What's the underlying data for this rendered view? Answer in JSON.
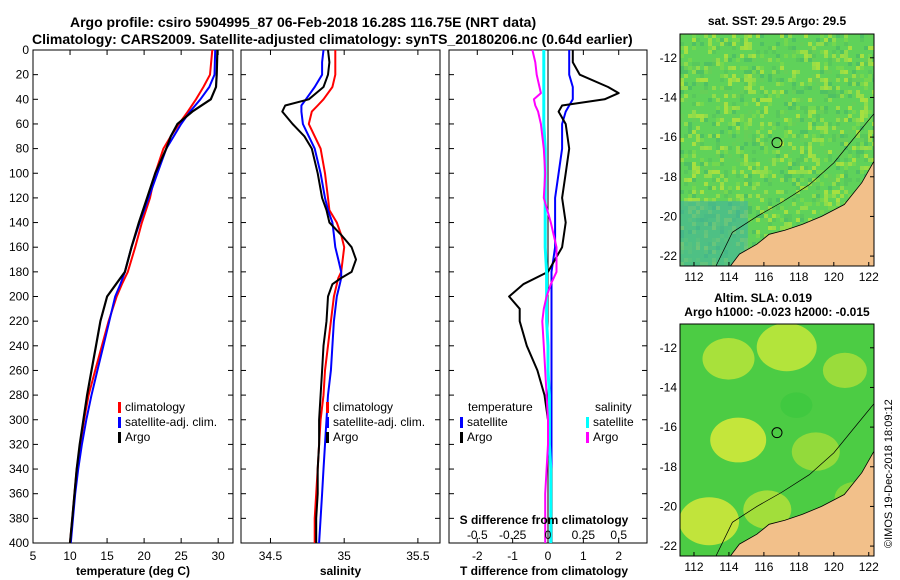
{
  "titles": {
    "line1": "Argo profile: csiro 5904995_87 06-Feb-2018 16.28S 116.75E (NRT data)",
    "line2": "Climatology: CARS2009. Satellite-adjusted climatology: synTS_20180206.nc (0.64d earlier)"
  },
  "credit": "©IMOS 19-Dec-2018 18:09:12",
  "colors": {
    "climatology": "#ff0000",
    "satellite": "#0000ff",
    "argo": "#000000",
    "satellite_salinity": "#00ffff",
    "argo_salinity": "#ff00ff",
    "land": "#f2c08a",
    "ocean": "#4dd14d"
  },
  "chart_data": [
    {
      "type": "line",
      "name": "temperature",
      "xlabel": "temperature (deg C)",
      "ylabel": "",
      "xlim": [
        5,
        32
      ],
      "ylim": [
        0,
        400
      ],
      "x_ticks": [
        "5",
        "10",
        "15",
        "20",
        "25",
        "30"
      ],
      "x_tick_values": [
        5,
        10,
        15,
        20,
        25,
        30
      ],
      "y_ticks": [
        "0",
        "20",
        "40",
        "60",
        "80",
        "100",
        "120",
        "140",
        "160",
        "180",
        "200",
        "220",
        "240",
        "260",
        "280",
        "300",
        "320",
        "340",
        "360",
        "380",
        "400"
      ],
      "y_tick_values": [
        0,
        20,
        40,
        60,
        80,
        100,
        120,
        140,
        160,
        180,
        200,
        220,
        240,
        260,
        280,
        300,
        320,
        340,
        360,
        380,
        400
      ],
      "legend": [
        "climatology",
        "satellite-adj. clim.",
        "Argo"
      ],
      "depth": [
        0,
        20,
        30,
        40,
        50,
        60,
        70,
        80,
        100,
        120,
        140,
        160,
        180,
        190,
        200,
        220,
        240,
        260,
        280,
        300,
        320,
        340,
        360,
        380,
        400
      ],
      "series": [
        {
          "name": "climatology",
          "values": [
            29.2,
            28.9,
            28.0,
            27.0,
            25.9,
            24.7,
            23.6,
            22.6,
            21.5,
            20.8,
            19.7,
            18.8,
            17.8,
            17.0,
            16.3,
            15.2,
            14.3,
            13.4,
            12.5,
            11.9,
            11.4,
            10.9,
            10.6,
            10.3,
            10.0
          ]
        },
        {
          "name": "satellite-adj. clim.",
          "values": [
            29.6,
            29.5,
            28.8,
            27.6,
            26.2,
            25.0,
            24.0,
            23.0,
            21.8,
            20.6,
            19.4,
            18.3,
            17.4,
            16.8,
            16.1,
            15.3,
            14.5,
            13.7,
            12.9,
            12.2,
            11.6,
            11.1,
            10.7,
            10.4,
            10.1
          ]
        },
        {
          "name": "Argo",
          "values": [
            29.9,
            29.8,
            29.7,
            29.0,
            26.5,
            24.5,
            23.6,
            23.0,
            21.5,
            20.4,
            19.3,
            18.3,
            17.4,
            16.2,
            15.0,
            14.1,
            13.5,
            12.9,
            12.3,
            11.8,
            11.3,
            10.9,
            10.6,
            10.3,
            10.0
          ]
        }
      ]
    },
    {
      "type": "line",
      "name": "salinity",
      "xlabel": "salinity",
      "xlim": [
        34.3,
        35.65
      ],
      "ylim": [
        0,
        400
      ],
      "x_ticks": [
        "34.5",
        "35",
        "35.5"
      ],
      "x_tick_values": [
        34.5,
        35,
        35.5
      ],
      "legend": [
        "climatology",
        "satellite-adj. clim.",
        "Argo"
      ],
      "depth": [
        0,
        10,
        20,
        30,
        40,
        45,
        50,
        60,
        70,
        80,
        100,
        120,
        130,
        140,
        150,
        160,
        170,
        180,
        185,
        190,
        200,
        220,
        240,
        260,
        280,
        300,
        320,
        340,
        360,
        380,
        400
      ],
      "series": [
        {
          "name": "climatology",
          "values": [
            34.94,
            34.94,
            34.94,
            34.92,
            34.86,
            34.82,
            34.78,
            34.76,
            34.8,
            34.84,
            34.87,
            34.89,
            34.9,
            34.95,
            34.98,
            35.0,
            34.99,
            34.98,
            34.96,
            34.95,
            34.93,
            34.91,
            34.89,
            34.87,
            34.86,
            34.84,
            34.83,
            34.82,
            34.81,
            34.8,
            34.8
          ]
        },
        {
          "name": "satellite-adj. clim.",
          "values": [
            34.86,
            34.85,
            34.85,
            34.8,
            34.74,
            34.71,
            34.71,
            34.72,
            34.76,
            34.8,
            34.84,
            34.87,
            34.89,
            34.92,
            34.93,
            34.94,
            34.96,
            34.98,
            34.98,
            34.97,
            34.95,
            34.93,
            34.92,
            34.91,
            34.89,
            34.88,
            34.87,
            34.86,
            34.85,
            34.84,
            34.83
          ]
        },
        {
          "name": "Argo",
          "values": [
            34.89,
            34.9,
            34.89,
            34.86,
            34.76,
            34.6,
            34.58,
            34.65,
            34.73,
            34.78,
            34.82,
            34.85,
            34.88,
            34.9,
            34.98,
            35.05,
            35.08,
            35.05,
            34.98,
            34.92,
            34.89,
            34.88,
            34.86,
            34.85,
            34.84,
            34.83,
            34.83,
            34.82,
            34.82,
            34.81,
            34.81
          ]
        }
      ]
    },
    {
      "type": "line",
      "name": "difference from climatology",
      "xlabel": "T difference from climatology",
      "xlabel_top": "S difference from climatology",
      "xlim": [
        -2.8,
        2.8
      ],
      "ylim": [
        0,
        400
      ],
      "x_ticks": [
        "-2",
        "-1",
        "0",
        "1",
        "2"
      ],
      "x_tick_values": [
        -2,
        -1,
        0,
        1,
        2
      ],
      "s_ticks": [
        "-0.5",
        "-0.25",
        "0",
        "0.25",
        "0.5"
      ],
      "s_tick_values": [
        -0.5,
        -0.25,
        0,
        0.25,
        0.5
      ],
      "legend": {
        "temperature_header": "temperature",
        "salinity_header": "salinity",
        "items": [
          "satellite",
          "Argo",
          "satellite",
          "Argo"
        ]
      },
      "depth": [
        0,
        10,
        20,
        30,
        35,
        40,
        45,
        50,
        60,
        80,
        100,
        120,
        140,
        160,
        180,
        190,
        200,
        210,
        220,
        240,
        260,
        280,
        300,
        320,
        340,
        360,
        380,
        400
      ],
      "series": [
        {
          "name": "temperature satellite",
          "values": [
            0.6,
            0.6,
            0.6,
            0.7,
            0.7,
            0.7,
            0.6,
            0.5,
            0.4,
            0.4,
            0.3,
            0.2,
            0.2,
            0.2,
            0.1,
            0.1,
            0.1,
            0.1,
            0.1,
            0.1,
            0.1,
            0.1,
            0.1,
            0.1,
            0.1,
            0.1,
            0.1,
            0.1
          ]
        },
        {
          "name": "temperature Argo",
          "values": [
            0.7,
            0.7,
            0.9,
            1.7,
            2.0,
            1.6,
            0.4,
            0.3,
            0.5,
            0.6,
            0.5,
            0.4,
            0.5,
            0.4,
            0.0,
            -0.7,
            -1.1,
            -0.8,
            -0.8,
            -0.6,
            -0.3,
            -0.1,
            0.0,
            0.0,
            0.1,
            0.1,
            0.1,
            0.1
          ]
        },
        {
          "name": "salinity satellite",
          "values": [
            -0.03,
            -0.03,
            -0.03,
            -0.03,
            -0.03,
            -0.03,
            -0.03,
            -0.03,
            -0.03,
            -0.02,
            -0.02,
            -0.02,
            -0.02,
            -0.02,
            -0.01,
            -0.01,
            -0.01,
            -0.01,
            -0.01,
            0.0,
            0.0,
            0.01,
            0.01,
            0.01,
            0.02,
            0.02,
            0.02,
            0.02
          ]
        },
        {
          "name": "salinity Argo",
          "values": [
            -0.11,
            -0.09,
            -0.08,
            -0.06,
            -0.05,
            -0.1,
            -0.09,
            -0.07,
            -0.05,
            -0.03,
            -0.02,
            -0.03,
            0.02,
            0.06,
            0.06,
            0.02,
            -0.01,
            -0.03,
            -0.04,
            -0.03,
            -0.02,
            -0.01,
            0.0,
            0.0,
            -0.01,
            -0.02,
            -0.02,
            -0.02
          ]
        }
      ]
    }
  ],
  "maps": [
    {
      "name": "sst-map",
      "title": "sat. SST: 29.5 Argo: 29.5",
      "x_ticks": [
        "112",
        "114",
        "116",
        "118",
        "120",
        "122"
      ],
      "x_tick_values": [
        112,
        114,
        116,
        118,
        120,
        122
      ],
      "y_ticks": [
        "-12",
        "-14",
        "-16",
        "-18",
        "-20",
        "-22"
      ],
      "y_tick_values": [
        -12,
        -14,
        -16,
        -18,
        -20,
        -22
      ],
      "xlim": [
        111.2,
        122.3
      ],
      "ylim": [
        -22.5,
        -10.8
      ],
      "marker": {
        "lon": 116.75,
        "lat": -16.28
      }
    },
    {
      "name": "sla-map",
      "title": "Altim. SLA: 0.019",
      "subtitle": "Argo h1000: -0.023 h2000: -0.015",
      "x_ticks": [
        "112",
        "114",
        "116",
        "118",
        "120",
        "122"
      ],
      "x_tick_values": [
        112,
        114,
        116,
        118,
        120,
        122
      ],
      "y_ticks": [
        "-12",
        "-14",
        "-16",
        "-18",
        "-20",
        "-22"
      ],
      "y_tick_values": [
        -12,
        -14,
        -16,
        -18,
        -20,
        -22
      ],
      "xlim": [
        111.2,
        122.3
      ],
      "ylim": [
        -22.5,
        -10.8
      ],
      "marker": {
        "lon": 116.75,
        "lat": -16.28
      }
    }
  ]
}
